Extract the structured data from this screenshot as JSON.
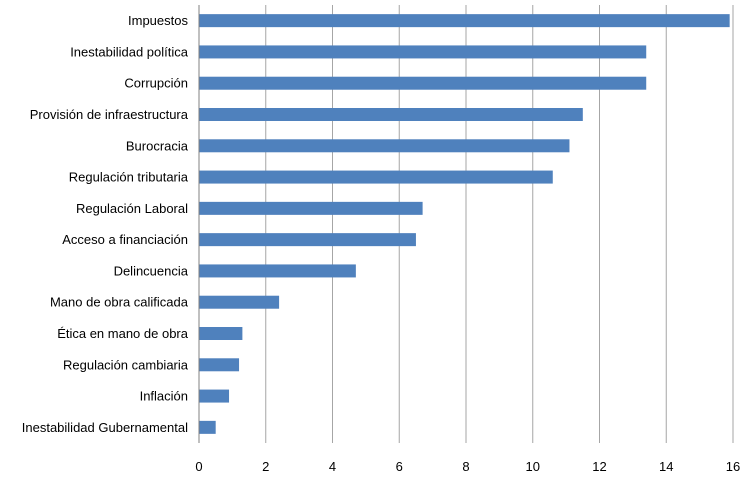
{
  "chart_data": {
    "type": "bar",
    "orientation": "horizontal",
    "title": "",
    "xlabel": "",
    "ylabel": "",
    "categories": [
      "Impuestos",
      "Inestabilidad política",
      "Corrupción",
      "Provisión de infraestructura",
      "Burocracia",
      "Regulación tributaria",
      "Regulación Laboral",
      "Acceso a financiación",
      "Delincuencia",
      "Mano de obra calificada",
      "Ética en mano de obra",
      "Regulación cambiaria",
      "Inflación",
      "Inestabilidad Gubernamental"
    ],
    "values": [
      15.9,
      13.4,
      13.4,
      11.5,
      11.1,
      10.6,
      6.7,
      6.5,
      4.7,
      2.4,
      1.3,
      1.2,
      0.9,
      0.5
    ],
    "xlim": [
      0,
      16
    ],
    "xticks": [
      "0",
      "2",
      "4",
      "6",
      "8",
      "10",
      "12",
      "14",
      "16"
    ],
    "grid": true,
    "legend": "none",
    "bar_color": "#4f81bd"
  }
}
